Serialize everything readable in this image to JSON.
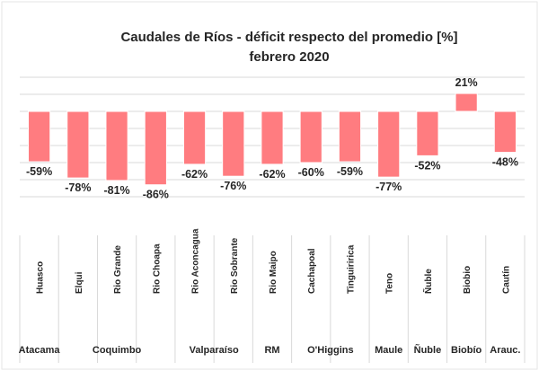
{
  "chart_data": {
    "type": "bar",
    "title": "Caudales de Ríos - déficit  respecto del promedio [%]",
    "subtitle": "febrero 2020",
    "categories": [
      "Huasco",
      "Elqui",
      "Rio Grande",
      "Rio Choapa",
      "Rio Aconcagua",
      "Rio Sobrante",
      "Rio Maipo",
      "Cachapoal",
      "Tinguiririca",
      "Teno",
      "Ñuble",
      "Biobio",
      "Cautín"
    ],
    "values": [
      -59,
      -78,
      -81,
      -86,
      -62,
      -76,
      -62,
      -60,
      -59,
      -77,
      -52,
      21,
      -48
    ],
    "data_labels": [
      "-59%",
      "-78%",
      "-81%",
      "-86%",
      "-62%",
      "-76%",
      "-62%",
      "-60%",
      "-59%",
      "-77%",
      "-52%",
      "21%",
      "-48%"
    ],
    "regions": [
      {
        "name": "Atacama",
        "span": 1
      },
      {
        "name": "Coquimbo",
        "span": 3
      },
      {
        "name": "Valparaíso",
        "span": 2
      },
      {
        "name": "RM",
        "span": 1
      },
      {
        "name": "O'Higgins",
        "span": 2
      },
      {
        "name": "Maule",
        "span": 1
      },
      {
        "name": "Ñuble",
        "span": 1
      },
      {
        "name": "Biobío",
        "span": 1
      },
      {
        "name": "Arauc.",
        "span": 1
      }
    ],
    "ylim": [
      -110,
      45
    ],
    "grid": true,
    "legend": "none",
    "colors": {
      "bar": "#ff7c80",
      "bar_edge": "#ffffff",
      "grid": "#d9d9d9",
      "text": "#262626"
    }
  }
}
